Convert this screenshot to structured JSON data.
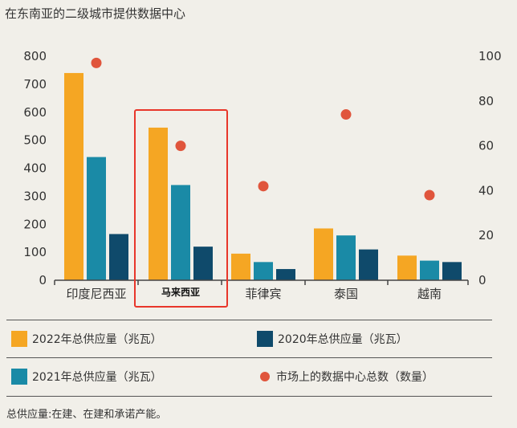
{
  "title": "在东南亚的二级城市提供数据中心",
  "footnote": "总供应量:在建、在建和承诺产能。",
  "colors": {
    "s2022": "#f5a623",
    "s2021": "#1a8aa6",
    "s2020": "#0f4a6b",
    "dot": "#e0553c",
    "highlight": "#e8362a"
  },
  "legend": [
    {
      "label": "2022年总供应量（兆瓦）",
      "kind": "swatch",
      "color": "#f5a623"
    },
    {
      "label": "2020年总供应量（兆瓦）",
      "kind": "swatch",
      "color": "#0f4a6b"
    },
    {
      "label": "2021年总供应量（兆瓦）",
      "kind": "swatch",
      "color": "#1a8aa6"
    },
    {
      "label": "市场上的数据中心总数（数量）",
      "kind": "dot",
      "color": "#e0553c"
    }
  ],
  "chart_data": {
    "type": "bar",
    "categories": [
      "印度尼西亚",
      "马来西亚",
      "菲律宾",
      "泰国",
      "越南"
    ],
    "highlighted_category": "马来西亚",
    "series": [
      {
        "name": "2022年总供应量（兆瓦）",
        "axis": "left",
        "values": [
          740,
          545,
          95,
          185,
          88
        ]
      },
      {
        "name": "2021年总供应量（兆瓦）",
        "axis": "left",
        "values": [
          440,
          340,
          65,
          160,
          70
        ]
      },
      {
        "name": "2020年总供应量（兆瓦）",
        "axis": "left",
        "values": [
          165,
          120,
          40,
          110,
          65
        ]
      },
      {
        "name": "市场上的数据中心总数（数量）",
        "axis": "right",
        "type": "scatter",
        "values": [
          97,
          60,
          42,
          74,
          38
        ]
      }
    ],
    "ylim_left": [
      0,
      800
    ],
    "yticks_left": [
      "0",
      "100",
      "200",
      "300",
      "400",
      "500",
      "600",
      "700",
      "800"
    ],
    "ylim_right": [
      0,
      100
    ],
    "yticks_right": [
      "0",
      "20",
      "40",
      "60",
      "80",
      "100"
    ],
    "grid": false
  }
}
